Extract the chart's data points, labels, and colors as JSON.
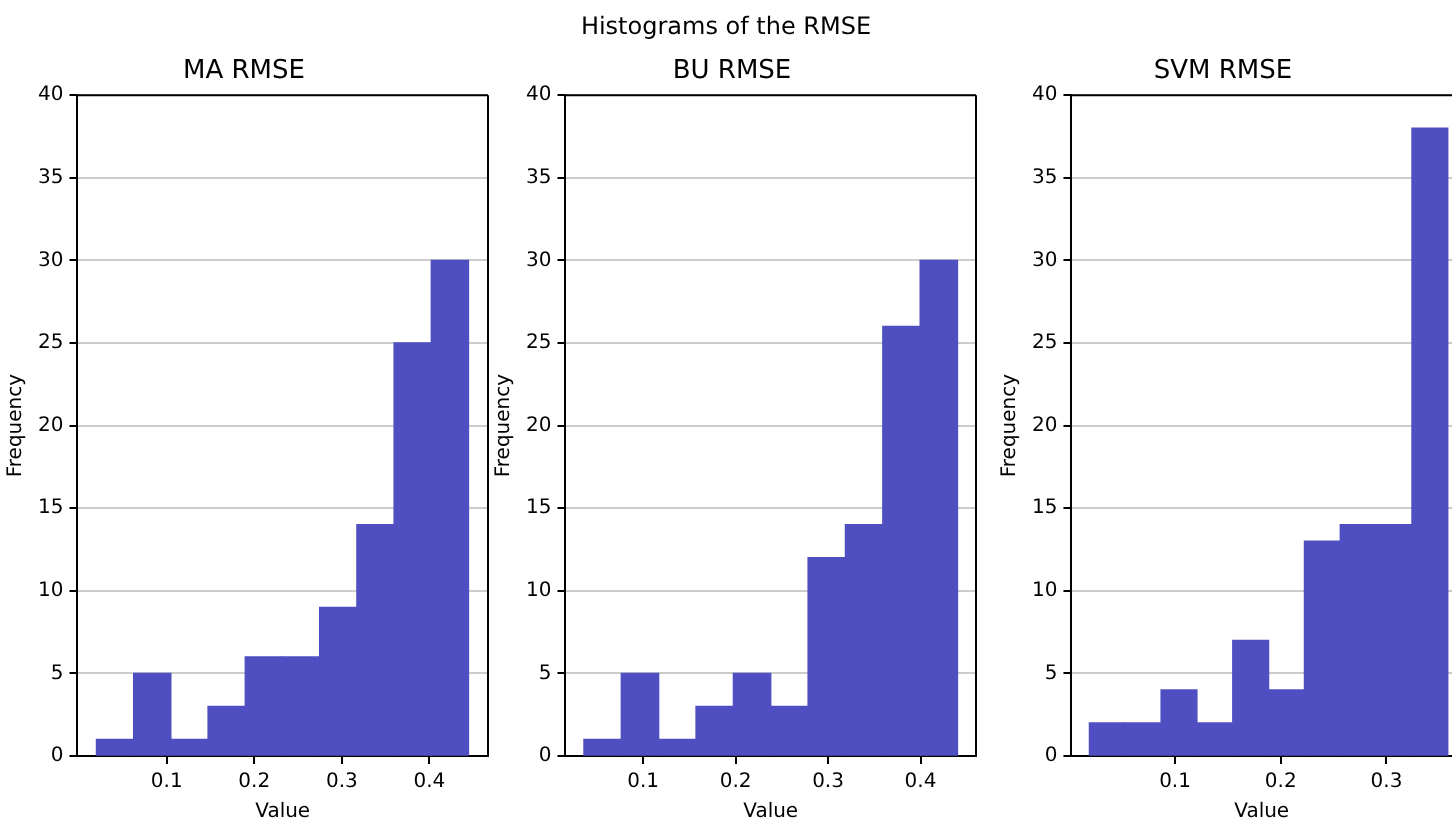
{
  "chart_data": [
    {
      "type": "histogram",
      "title": "MA RMSE",
      "annotations": [
        "Histograms of the RMSE"
      ],
      "xlabel": "Value",
      "ylabel": "Frequency",
      "color": "#4f4fc2",
      "bins": [
        0.0197,
        0.0622,
        0.1047,
        0.1472,
        0.1897,
        0.2322,
        0.2747,
        0.3172,
        0.3597,
        0.4022,
        0.4447
      ],
      "values": [
        1,
        5,
        1,
        3,
        6,
        6,
        9,
        14,
        25,
        30
      ],
      "xlim": [
        -0.002,
        0.467
      ],
      "xticks": [
        0.1,
        0.2,
        0.3,
        0.4
      ],
      "ylim": [
        0,
        40
      ],
      "yticks": [
        0,
        5,
        10,
        15,
        20,
        25,
        30,
        35,
        40
      ],
      "grid": "y"
    },
    {
      "type": "histogram",
      "title": "BU RMSE",
      "xlabel": "Value",
      "ylabel": "Frequency",
      "color": "#4f4fc2",
      "bins": [
        0.036,
        0.0764,
        0.1168,
        0.1572,
        0.1976,
        0.238,
        0.2784,
        0.3188,
        0.3592,
        0.3996,
        0.44
      ],
      "values": [
        1,
        5,
        1,
        3,
        5,
        3,
        12,
        14,
        26,
        30
      ],
      "xlim": [
        0.016,
        0.46
      ],
      "xticks": [
        0.1,
        0.2,
        0.3,
        0.4
      ],
      "ylim": [
        0,
        40
      ],
      "yticks": [
        0,
        5,
        10,
        15,
        20,
        25,
        30,
        35,
        40
      ],
      "grid": "y"
    },
    {
      "type": "histogram",
      "title": "SVM RMSE",
      "xlabel": "Value",
      "ylabel": "Frequency",
      "color": "#4f4fc2",
      "bins": [
        0.019,
        0.0529,
        0.0868,
        0.1207,
        0.1546,
        0.1885,
        0.2224,
        0.2563,
        0.2902,
        0.3241,
        0.358
      ],
      "values": [
        2,
        2,
        4,
        2,
        7,
        4,
        13,
        14,
        14,
        38
      ],
      "xlim": [
        0.002,
        0.362
      ],
      "xticks": [
        0.1,
        0.2,
        0.3
      ],
      "ylim": [
        0,
        40
      ],
      "yticks": [
        0,
        5,
        10,
        15,
        20,
        25,
        30,
        35,
        40
      ],
      "grid": "y"
    }
  ]
}
